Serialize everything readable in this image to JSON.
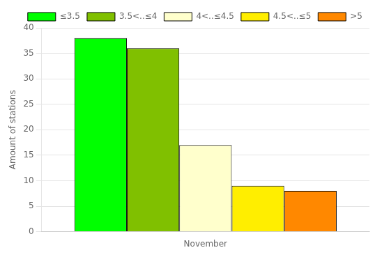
{
  "chart_data": {
    "type": "bar",
    "categories": [
      "November"
    ],
    "series": [
      {
        "name": "≤3.5",
        "color": "#00ff00",
        "values": [
          38
        ]
      },
      {
        "name": "3.5<..≤4",
        "color": "#80c000",
        "values": [
          36
        ]
      },
      {
        "name": "4<..≤4.5",
        "color": "#ffffcc",
        "values": [
          17
        ]
      },
      {
        "name": "4.5<..≤5",
        "color": "#ffee00",
        "values": [
          9
        ]
      },
      {
        "name": ">5",
        "color": "#ff8800",
        "values": [
          8
        ]
      }
    ],
    "ylabel": "Amount of stations",
    "ylim": [
      0,
      40
    ],
    "yticks": [
      0,
      5,
      10,
      15,
      20,
      25,
      30,
      35,
      40
    ],
    "grid": "y",
    "legend": "upper right"
  }
}
